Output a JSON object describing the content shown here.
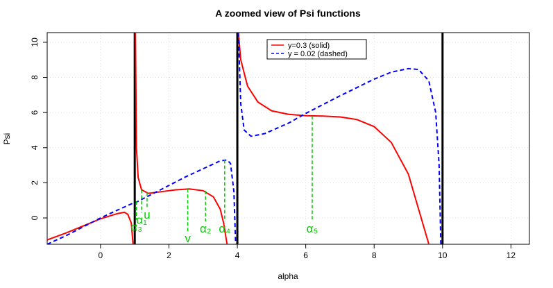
{
  "chart_data": {
    "type": "line",
    "title": "A zoomed view of Psi functions",
    "xlabel": "alpha",
    "ylabel": "Psi",
    "xlim": [
      -1.56,
      12.54
    ],
    "ylim": [
      -1.5,
      10.55
    ],
    "xticks": [
      0,
      2,
      4,
      6,
      8,
      10,
      12
    ],
    "yticks": [
      0,
      2,
      4,
      6,
      8,
      10
    ],
    "grid": true,
    "legend_position": "top",
    "series": [
      {
        "name": "y=0.3 (solid)",
        "color": "#ff0000",
        "dash": false,
        "x": [
          -1.56,
          -1,
          -0.5,
          0,
          0.5,
          0.7,
          0.8,
          0.9,
          0.95,
          0.99,
          1.02,
          1.05,
          1.1,
          1.2,
          1.4,
          1.8,
          2.2,
          2.6,
          3.0,
          3.3,
          3.5,
          3.6,
          3.7,
          3.9,
          4.03,
          4.1,
          4.3,
          4.6,
          5,
          5.5,
          6,
          6.5,
          7,
          7.5,
          8,
          8.5,
          9,
          9.3,
          9.6
        ],
        "values": [
          -1.25,
          -0.85,
          -0.45,
          -0.05,
          0.25,
          0.32,
          0.2,
          -0.3,
          -1.5,
          null,
          10.55,
          4,
          2.3,
          1.6,
          1.4,
          1.5,
          1.6,
          1.65,
          1.55,
          1.2,
          0.5,
          -0.3,
          -1.5,
          null,
          10.55,
          9,
          7.5,
          6.6,
          6.1,
          5.9,
          5.82,
          5.8,
          5.75,
          5.6,
          5.2,
          4.3,
          2.5,
          0.5,
          -1.5
        ]
      },
      {
        "name": "y = 0.02 (dashed)",
        "color": "#0000ff",
        "dash": true,
        "x": [
          -1.56,
          -1,
          -0.5,
          0,
          0.5,
          0.9,
          1.0,
          1.5,
          2,
          2.5,
          3,
          3.5,
          3.7,
          3.8,
          3.9,
          3.95,
          4.0,
          4.03,
          4.1,
          4.2,
          4.4,
          4.8,
          5.5,
          6,
          7,
          8,
          8.5,
          9,
          9.3,
          9.6,
          9.8,
          9.9,
          9.95
        ],
        "values": [
          -1.5,
          -1.0,
          -0.5,
          0,
          0.45,
          0.8,
          0.85,
          1.35,
          1.85,
          2.35,
          2.8,
          3.25,
          3.3,
          3.1,
          1.5,
          -1.5,
          null,
          10.55,
          6.5,
          5.0,
          4.65,
          4.8,
          5.4,
          5.95,
          6.95,
          7.9,
          8.3,
          8.5,
          8.45,
          7.8,
          6,
          3,
          -1.5
        ]
      }
    ],
    "vlines": [
      1,
      4,
      10
    ],
    "annotations": [
      {
        "label": "α₃",
        "x": 1.05,
        "top": 0.95,
        "end": -0.1
      },
      {
        "label": "α₁",
        "x": 1.2,
        "top": 1.6,
        "end": 0.3
      },
      {
        "label": "u",
        "x": 1.36,
        "top": 1.45,
        "end": 0.6
      },
      {
        "label": "v",
        "x": 2.55,
        "top": 1.65,
        "end": -0.75
      },
      {
        "label": "α₂",
        "x": 3.07,
        "top": 1.55,
        "end": -0.2
      },
      {
        "label": "α₄",
        "x": 3.63,
        "top": 3.3,
        "end": -0.2
      },
      {
        "label": "α₅",
        "x": 6.19,
        "top": 5.8,
        "end": -0.2
      }
    ]
  }
}
